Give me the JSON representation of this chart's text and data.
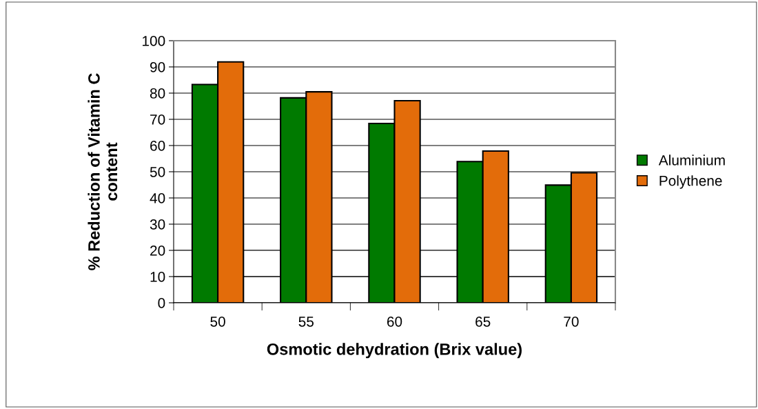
{
  "chart_data": {
    "type": "bar",
    "xlabel": "Osmotic dehydration (Brix value)",
    "ylabel": "% Reduction of Vitamin C\ncontent",
    "categories": [
      "50",
      "55",
      "60",
      "65",
      "70"
    ],
    "series": [
      {
        "name": "Aluminium",
        "color": "#007a00",
        "values": [
          83.3,
          78.2,
          68.4,
          53.9,
          44.9
        ]
      },
      {
        "name": "Polythene",
        "color": "#e36c0a",
        "values": [
          91.9,
          80.5,
          77.1,
          57.9,
          49.6
        ]
      }
    ],
    "ylim": [
      0,
      100
    ],
    "yticks": [
      0,
      10,
      20,
      30,
      40,
      50,
      60,
      70,
      80,
      90,
      100
    ],
    "grid": "y",
    "legend": "right"
  }
}
